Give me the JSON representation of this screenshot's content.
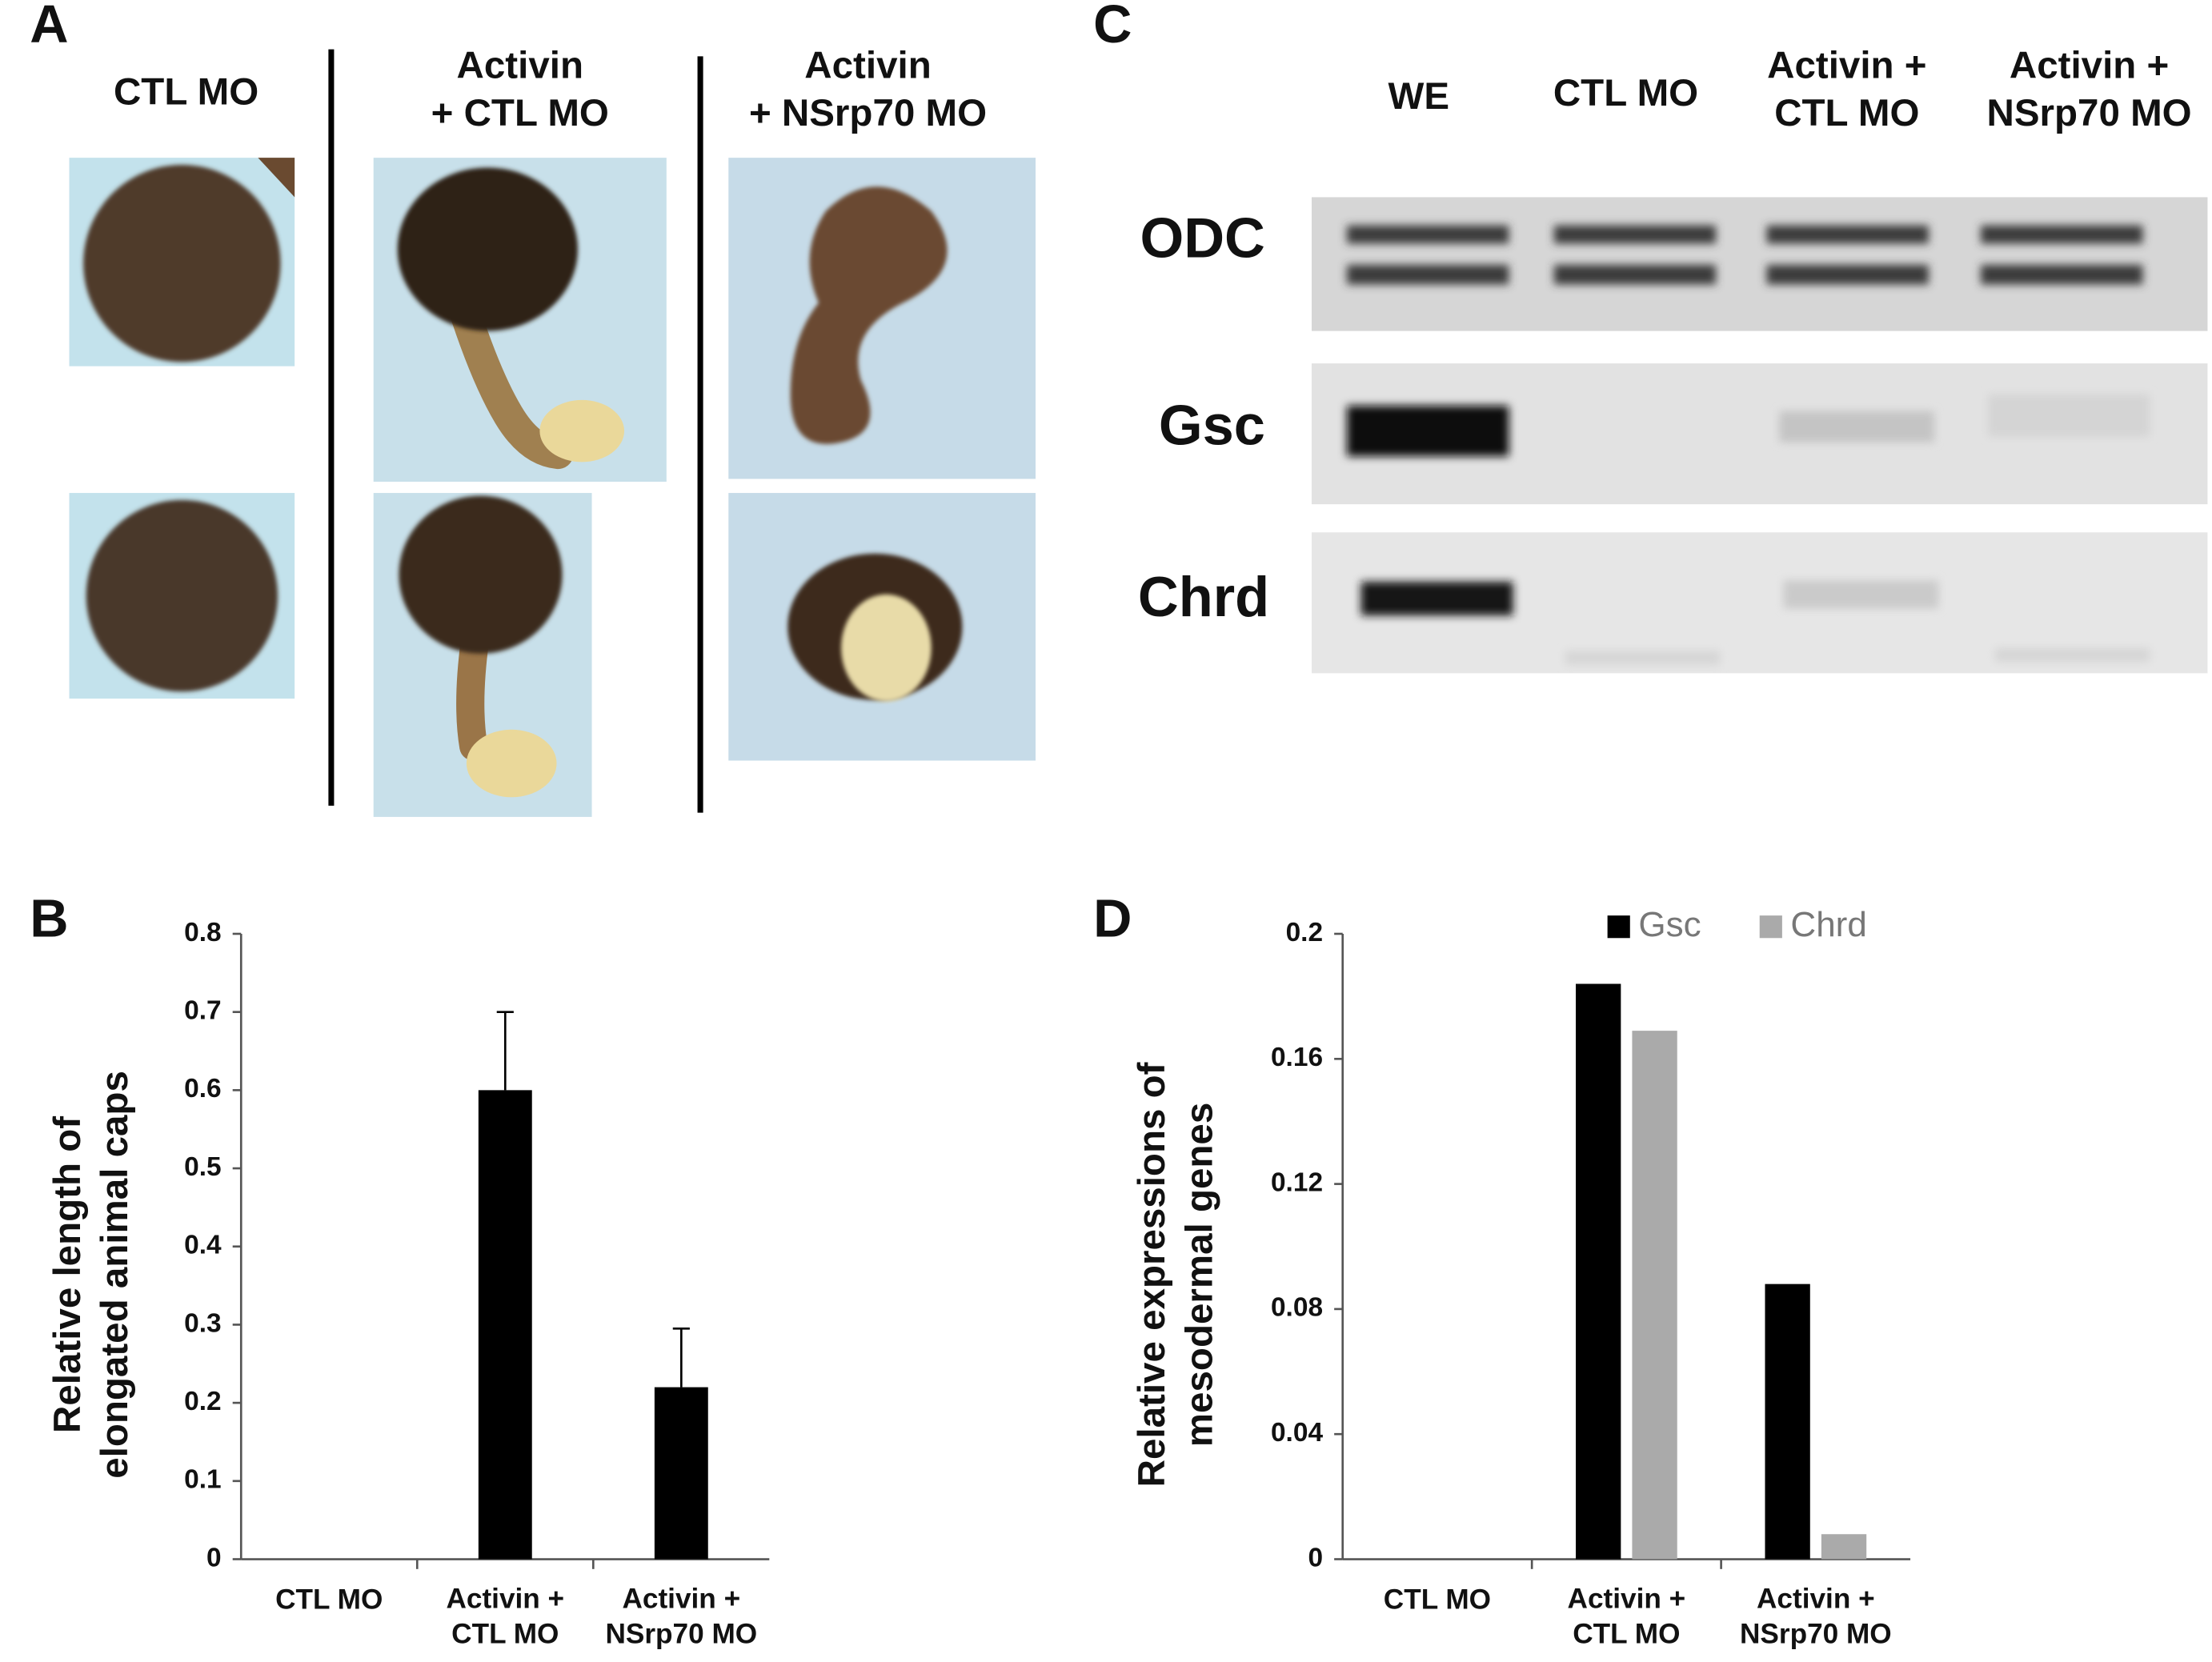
{
  "panel_labels": [
    "A",
    "B",
    "C",
    "D"
  ],
  "panel_a": {
    "headers": [
      "CTL MO",
      "Activin\n+ CTL MO",
      "Activin\n+ NSrp70 MO"
    ]
  },
  "panel_c": {
    "lanes": [
      "WE",
      "CTL MO",
      "Activin +\nCTL MO",
      "Activin +\nNSrp70 MO"
    ],
    "rows": [
      "ODC",
      "Gsc",
      "Chrd"
    ]
  },
  "chart_data": [
    {
      "type": "bar",
      "y_label": "Relative length of\nelongated animal caps",
      "categories": [
        "CTL MO",
        "Activin +\nCTL MO",
        "Activin +\nNSrp70 MO"
      ],
      "values": [
        0,
        0.6,
        0.22
      ],
      "errors": [
        null,
        0.1,
        0.075
      ],
      "color": "#000000",
      "ylim": [
        0,
        0.8
      ],
      "yticks": [
        0,
        0.1,
        0.2,
        0.3,
        0.4,
        0.5,
        0.6,
        0.7,
        0.8
      ]
    },
    {
      "type": "grouped_bar",
      "y_label": "Relative expressions of\nmesodermal genes",
      "categories": [
        "CTL MO",
        "Activin +\nCTL MO",
        "Activin +\nNSrp70 MO"
      ],
      "series": [
        {
          "name": "Gsc",
          "color": "#000000",
          "values": [
            0,
            0.184,
            0.088
          ]
        },
        {
          "name": "Chrd",
          "color": "#aaaaaa",
          "values": [
            0,
            0.169,
            0.008
          ]
        }
      ],
      "ylim": [
        0,
        0.2
      ],
      "yticks": [
        0,
        0.04,
        0.08,
        0.12,
        0.16,
        0.2
      ],
      "legend": "top"
    }
  ]
}
